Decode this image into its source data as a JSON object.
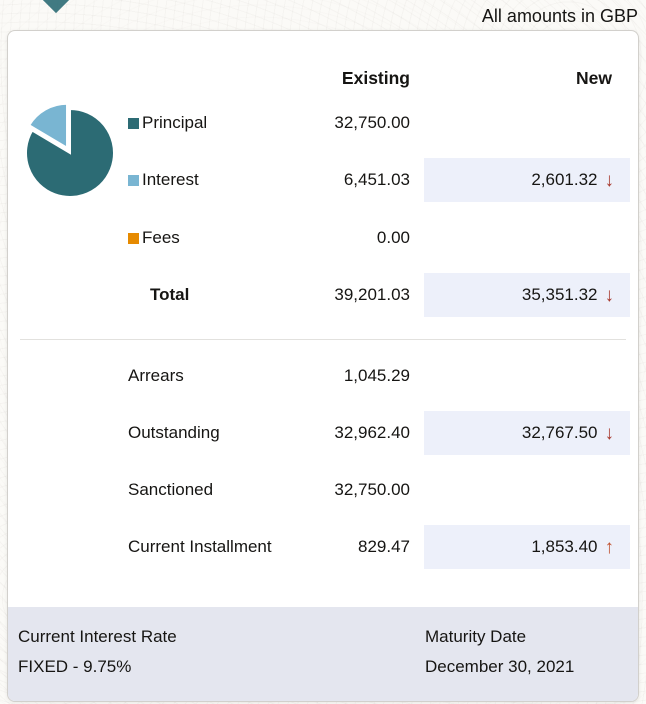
{
  "page": {
    "amounts_note": "All amounts in GBP"
  },
  "table": {
    "columns": {
      "existing": "Existing",
      "new": "New"
    },
    "rows": {
      "principal": {
        "label": "Principal",
        "existing": "32,750.00"
      },
      "interest": {
        "label": "Interest",
        "existing": "6,451.03",
        "new": "2,601.32",
        "trend": "down"
      },
      "fees": {
        "label": "Fees",
        "existing": "0.00"
      },
      "total": {
        "label": "Total",
        "existing": "39,201.03",
        "new": "35,351.32",
        "trend": "down"
      },
      "arrears": {
        "label": "Arrears",
        "existing": "1,045.29"
      },
      "outstanding": {
        "label": "Outstanding",
        "existing": "32,962.40",
        "new": "32,767.50",
        "trend": "down"
      },
      "sanctioned": {
        "label": "Sanctioned",
        "existing": "32,750.00"
      },
      "current_installment": {
        "label": "Current Installment",
        "existing": "829.47",
        "new": "1,853.40",
        "trend": "up"
      }
    }
  },
  "chart_data": {
    "type": "pie",
    "labels": [
      "Principal",
      "Interest",
      "Fees"
    ],
    "values": [
      32750.0,
      6451.03,
      0.0
    ],
    "colors": [
      "#2c6b74",
      "#79b5d2",
      "#e68a00"
    ],
    "exploded_index": 1,
    "legend_position": "right",
    "title": ""
  },
  "icons": {
    "down_arrow": "↓",
    "up_arrow": "↑"
  },
  "colors": {
    "principal": "#2c6b74",
    "interest": "#79b5d2",
    "fees": "#e68a00",
    "decrease_arrow": "#a8392e",
    "increase_arrow": "#c0512f",
    "new_cell_bg": "#edf0fa",
    "footer_bg": "#e4e6ef"
  },
  "footer": {
    "interest_rate_label": "Current Interest Rate",
    "interest_rate_value": "FIXED - 9.75%",
    "maturity_label": "Maturity Date",
    "maturity_value": "December 30, 2021"
  }
}
